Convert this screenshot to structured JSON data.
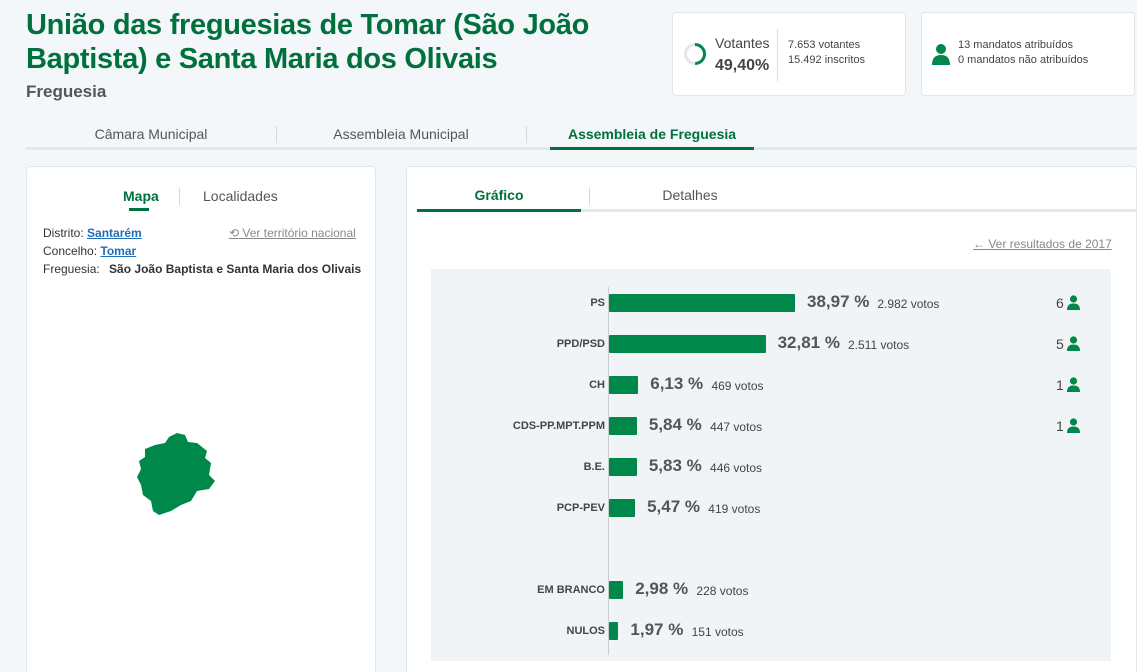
{
  "header": {
    "title": "União das freguesias de Tomar (São João Baptista) e Santa Maria dos Olivais",
    "subtitle": "Freguesia"
  },
  "turnout": {
    "label": "Votantes",
    "percent_text": "49,40%",
    "fraction": 0.494,
    "voters_text": "7.653 votantes",
    "registered_text": "15.492 inscritos"
  },
  "mandates": {
    "assigned_text": "13 mandatos atribuídos",
    "unassigned_text": "0 mandatos não atribuídos"
  },
  "main_tabs": [
    {
      "label": "Câmara Municipal",
      "active": false
    },
    {
      "label": "Assembleia Municipal",
      "active": false
    },
    {
      "label": "Assembleia de Freguesia",
      "active": true
    }
  ],
  "left_panel": {
    "tabs": [
      {
        "label": "Mapa",
        "active": true
      },
      {
        "label": "Localidades",
        "active": false
      }
    ],
    "district_label": "Distrito:",
    "district_value": "Santarém",
    "municipality_label": "Concelho:",
    "municipality_value": "Tomar",
    "parish_label": "Freguesia:",
    "parish_value": "São João Baptista e Santa Maria dos Olivais",
    "national_link": "Ver território nacional",
    "map_color": "#00874a"
  },
  "right_panel": {
    "tabs": [
      {
        "label": "Gráfico",
        "active": true
      },
      {
        "label": "Detalhes",
        "active": false
      }
    ],
    "previous_results_link": "Ver resultados de 2017"
  },
  "chart_data": {
    "type": "bar",
    "orientation": "horizontal",
    "bar_color": "#00874a",
    "categories": [
      "PS",
      "PPD/PSD",
      "CH",
      "CDS-PP.MPT.PPM",
      "B.E.",
      "PCP-PEV",
      "EM BRANCO",
      "NULOS"
    ],
    "values": [
      38.97,
      32.81,
      6.13,
      5.84,
      5.83,
      5.47,
      2.98,
      1.97
    ],
    "value_labels": [
      "38,97 %",
      "32,81 %",
      "6,13 %",
      "5,84 %",
      "5,83 %",
      "5,47 %",
      "2,98 %",
      "1,97 %"
    ],
    "votes": [
      "2.982 votos",
      "2.511 votos",
      "469 votos",
      "447 votos",
      "446 votos",
      "419 votos",
      "228 votos",
      "151 votos"
    ],
    "mandates": [
      "6",
      "5",
      "1",
      "1",
      "",
      "",
      "",
      ""
    ]
  },
  "colors": {
    "accent": "#00703c",
    "bar": "#00874a",
    "link": "#1c6fb8"
  }
}
